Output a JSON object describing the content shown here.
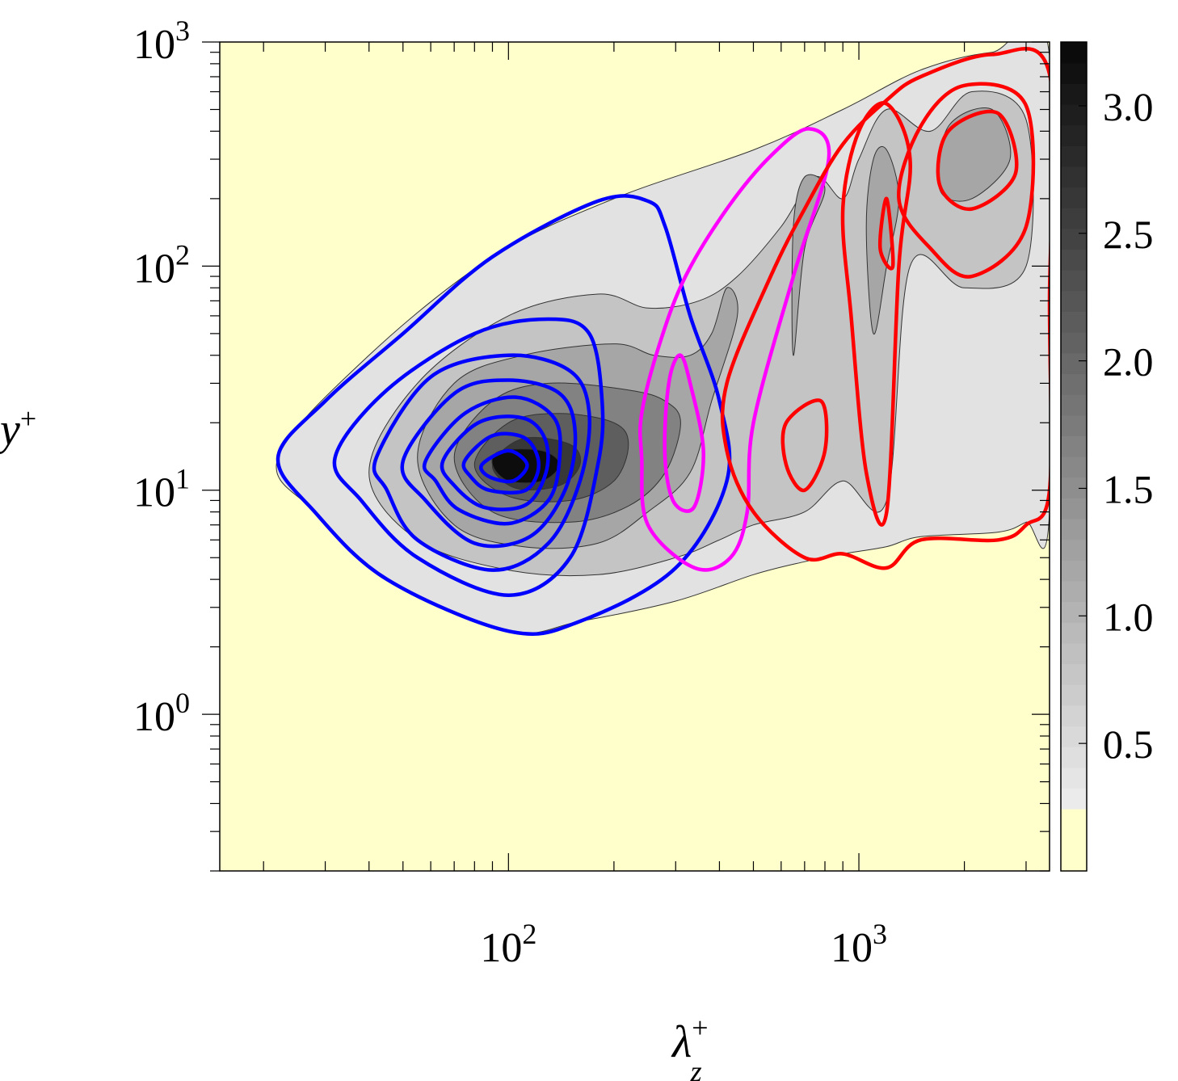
{
  "chart_data": {
    "type": "heatmap",
    "title": "",
    "xlabel": "λ_z^+",
    "ylabel": "y^+",
    "x_scale": "log",
    "y_scale": "log",
    "xlim": [
      15,
      3500
    ],
    "ylim": [
      0.2,
      1000
    ],
    "x_ticks": [
      {
        "value": 100,
        "base": "10",
        "exp": "2"
      },
      {
        "value": 1000,
        "base": "10",
        "exp": "3"
      }
    ],
    "y_ticks": [
      {
        "value": 1,
        "base": "10",
        "exp": "0"
      },
      {
        "value": 10,
        "base": "10",
        "exp": "1"
      },
      {
        "value": 100,
        "base": "10",
        "exp": "2"
      },
      {
        "value": 1000,
        "base": "10",
        "exp": "3"
      }
    ],
    "colorbar": {
      "range": [
        0,
        3.25
      ],
      "ticks": [
        "3.0",
        "2.5",
        "2.0",
        "1.5",
        "1.0",
        "0.5"
      ],
      "tick_values": [
        3.0,
        2.5,
        2.0,
        1.5,
        1.0,
        0.5
      ]
    },
    "background_color": "#ffffcc",
    "grey_fill_levels": [
      0.25,
      0.75,
      1.25,
      1.75,
      2.25,
      2.75,
      3.0
    ],
    "blue_contours": {
      "color": "#0000ff",
      "center": [
        100,
        12.5
      ],
      "levels": [
        [
          [
            22,
            14
          ],
          [
            30,
            25
          ],
          [
            50,
            50
          ],
          [
            90,
            110
          ],
          [
            180,
            195
          ],
          [
            250,
            195
          ],
          [
            280,
            150
          ],
          [
            330,
            60
          ],
          [
            400,
            25
          ],
          [
            420,
            11
          ],
          [
            300,
            4.5
          ],
          [
            160,
            2.6
          ],
          [
            100,
            2.35
          ],
          [
            45,
            4
          ],
          [
            28,
            8
          ]
        ],
        [
          [
            32,
            14
          ],
          [
            45,
            28
          ],
          [
            80,
            50
          ],
          [
            130,
            58
          ],
          [
            170,
            50
          ],
          [
            185,
            25
          ],
          [
            180,
            13
          ],
          [
            150,
            5
          ],
          [
            100,
            3.4
          ],
          [
            55,
            5
          ],
          [
            38,
            9
          ]
        ],
        [
          [
            42,
            14
          ],
          [
            60,
            32
          ],
          [
            100,
            40
          ],
          [
            150,
            34
          ],
          [
            170,
            22
          ],
          [
            160,
            11
          ],
          [
            130,
            5.8
          ],
          [
            90,
            4.4
          ],
          [
            55,
            6
          ],
          [
            45,
            10
          ]
        ],
        [
          [
            50,
            13.5
          ],
          [
            70,
            27
          ],
          [
            100,
            31
          ],
          [
            140,
            27
          ],
          [
            155,
            18
          ],
          [
            145,
            10
          ],
          [
            115,
            6.2
          ],
          [
            80,
            5.8
          ],
          [
            58,
            9
          ]
        ],
        [
          [
            58,
            13.5
          ],
          [
            75,
            22
          ],
          [
            105,
            26
          ],
          [
            135,
            21
          ],
          [
            140,
            14
          ],
          [
            130,
            9
          ],
          [
            100,
            7.1
          ],
          [
            72,
            8.2
          ],
          [
            62,
            11
          ]
        ],
        [
          [
            65,
            13.5
          ],
          [
            82,
            20
          ],
          [
            110,
            21
          ],
          [
            127,
            17
          ],
          [
            128,
            12
          ],
          [
            112,
            8.6
          ],
          [
            85,
            8.4
          ],
          [
            70,
            10.5
          ]
        ],
        [
          [
            75,
            13.5
          ],
          [
            90,
            17.5
          ],
          [
            112,
            17
          ],
          [
            122,
            13
          ],
          [
            112,
            10
          ],
          [
            88,
            10
          ],
          [
            78,
            11.5
          ]
        ],
        [
          [
            84,
            13
          ],
          [
            100,
            15
          ],
          [
            113,
            13
          ],
          [
            103,
            11
          ],
          [
            88,
            11.5
          ]
        ]
      ]
    },
    "magenta_contours": {
      "color": "#ff00ff",
      "levels": [
        [
          [
            240,
            22
          ],
          [
            270,
            45
          ],
          [
            320,
            90
          ],
          [
            420,
            180
          ],
          [
            560,
            310
          ],
          [
            720,
            410
          ],
          [
            820,
            300
          ],
          [
            650,
            90
          ],
          [
            500,
            20
          ],
          [
            480,
            8
          ],
          [
            430,
            5
          ],
          [
            340,
            4.5
          ],
          [
            250,
            7
          ],
          [
            240,
            14
          ]
        ],
        [
          [
            280,
            20
          ],
          [
            290,
            33
          ],
          [
            310,
            40
          ],
          [
            330,
            30
          ],
          [
            360,
            15
          ],
          [
            340,
            8.5
          ],
          [
            300,
            8.6
          ],
          [
            282,
            12
          ]
        ]
      ]
    },
    "red_contours": {
      "color": "#ff0000",
      "levels": [
        [
          [
            3500,
            720
          ],
          [
            2400,
            880
          ],
          [
            1500,
            700
          ],
          [
            1200,
            550
          ],
          [
            900,
            350
          ],
          [
            700,
            180
          ],
          [
            560,
            90
          ],
          [
            420,
            30
          ],
          [
            420,
            15
          ],
          [
            500,
            8
          ],
          [
            700,
            5
          ],
          [
            900,
            5.2
          ],
          [
            1200,
            4.5
          ],
          [
            1500,
            6
          ],
          [
            2500,
            6
          ],
          [
            3000,
            7
          ],
          [
            3500,
            10
          ],
          [
            3500,
            70
          ]
        ],
        [
          [
            900,
            180
          ],
          [
            1000,
            400
          ],
          [
            1200,
            530
          ],
          [
            1400,
            300
          ],
          [
            1300,
            100
          ],
          [
            1200,
            8
          ],
          [
            1050,
            12
          ],
          [
            950,
            60
          ]
        ],
        [
          [
            1300,
            200
          ],
          [
            1500,
            420
          ],
          [
            2000,
            640
          ],
          [
            3000,
            520
          ],
          [
            3000,
            150
          ],
          [
            2100,
            90
          ],
          [
            1600,
            120
          ]
        ],
        [
          [
            1700,
            230
          ],
          [
            1800,
            400
          ],
          [
            2500,
            480
          ],
          [
            2800,
            260
          ],
          [
            2100,
            180
          ]
        ],
        [
          [
            1150,
            120
          ],
          [
            1200,
            200
          ],
          [
            1250,
            100
          ]
        ],
        [
          [
            620,
            20
          ],
          [
            620,
            13
          ],
          [
            700,
            10
          ],
          [
            800,
            15
          ],
          [
            780,
            25
          ]
        ]
      ]
    },
    "grey_regions": {
      "outer": [
        [
          22,
          14
        ],
        [
          40,
          40
        ],
        [
          90,
          110
        ],
        [
          200,
          200
        ],
        [
          500,
          330
        ],
        [
          900,
          500
        ],
        [
          1500,
          750
        ],
        [
          2400,
          900
        ],
        [
          3500,
          870
        ],
        [
          3500,
          8
        ],
        [
          3000,
          7.2
        ],
        [
          2500,
          6.5
        ],
        [
          1500,
          6.2
        ],
        [
          1200,
          5.6
        ],
        [
          900,
          5.2
        ],
        [
          700,
          4.8
        ],
        [
          500,
          4.2
        ],
        [
          300,
          3.2
        ],
        [
          160,
          2.6
        ],
        [
          100,
          2.35
        ],
        [
          45,
          4
        ],
        [
          28,
          8
        ]
      ],
      "l2": [
        [
          100,
          60
        ],
        [
          180,
          75
        ],
        [
          250,
          65
        ],
        [
          350,
          70
        ],
        [
          450,
          90
        ],
        [
          600,
          150
        ],
        [
          750,
          250
        ],
        [
          900,
          200
        ],
        [
          1000,
          300
        ],
        [
          1200,
          500
        ],
        [
          1600,
          400
        ],
        [
          2100,
          600
        ],
        [
          3000,
          450
        ],
        [
          3000,
          100
        ],
        [
          2000,
          80
        ],
        [
          1400,
          100
        ],
        [
          1200,
          9
        ],
        [
          900,
          11
        ],
        [
          700,
          8
        ],
        [
          500,
          7
        ],
        [
          400,
          6
        ],
        [
          300,
          5
        ],
        [
          180,
          4.2
        ],
        [
          100,
          4.4
        ],
        [
          55,
          6
        ],
        [
          40,
          12
        ],
        [
          55,
          30
        ]
      ],
      "l3": [
        [
          110,
          40
        ],
        [
          200,
          45
        ],
        [
          260,
          40
        ],
        [
          330,
          40
        ],
        [
          380,
          50
        ],
        [
          420,
          80
        ],
        [
          450,
          60
        ],
        [
          380,
          25
        ],
        [
          330,
          12
        ],
        [
          250,
          8
        ],
        [
          180,
          5.8
        ],
        [
          110,
          5.6
        ],
        [
          70,
          7
        ],
        [
          55,
          14
        ],
        [
          70,
          30
        ]
      ],
      "l4": [
        [
          130,
          30
        ],
        [
          220,
          28
        ],
        [
          280,
          25
        ],
        [
          310,
          20
        ],
        [
          280,
          12
        ],
        [
          220,
          8.5
        ],
        [
          150,
          7.2
        ],
        [
          90,
          8
        ],
        [
          70,
          14
        ],
        [
          90,
          25
        ]
      ],
      "l5": [
        [
          140,
          22
        ],
        [
          200,
          20
        ],
        [
          220,
          16
        ],
        [
          200,
          11
        ],
        [
          150,
          9
        ],
        [
          100,
          9.4
        ],
        [
          80,
          13
        ],
        [
          100,
          20
        ]
      ],
      "l6": [
        [
          110,
          17
        ],
        [
          150,
          16
        ],
        [
          160,
          13
        ],
        [
          140,
          10.5
        ],
        [
          105,
          10.2
        ],
        [
          90,
          13
        ]
      ],
      "core": [
        [
          95,
          15
        ],
        [
          125,
          15
        ],
        [
          140,
          13
        ],
        [
          125,
          11
        ],
        [
          100,
          11
        ],
        [
          90,
          13
        ]
      ],
      "grey_islands": [
        [
          [
            650,
            40
          ],
          [
            700,
            120
          ],
          [
            800,
            220
          ],
          [
            700,
            250
          ],
          [
            650,
            150
          ]
        ],
        [
          [
            1050,
            150
          ],
          [
            1100,
            300
          ],
          [
            1200,
            330
          ],
          [
            1300,
            200
          ],
          [
            1200,
            100
          ],
          [
            1100,
            50
          ]
        ],
        [
          [
            1700,
            220
          ],
          [
            1800,
            420
          ],
          [
            2400,
            500
          ],
          [
            2700,
            300
          ],
          [
            2100,
            200
          ]
        ]
      ]
    }
  }
}
